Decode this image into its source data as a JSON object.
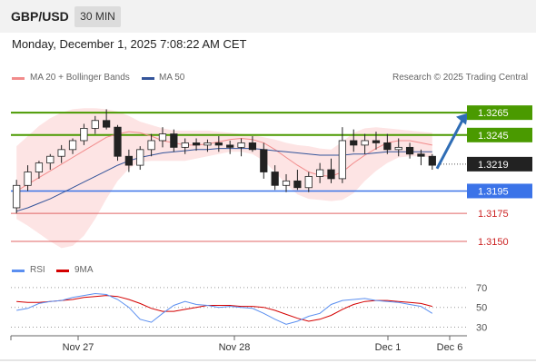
{
  "header": {
    "pair": "GBP/USD",
    "timeframe": "30 MIN",
    "datetime": "Monday, December 1, 2025 7:08:22 AM CET"
  },
  "legend": {
    "ma_bb": "MA 20 + Bollinger Bands",
    "ma50": "MA 50",
    "credit": "Research © 2025 Trading Central",
    "rsi": "RSI",
    "nine_ma": "9MA"
  },
  "colors": {
    "bollinger_fill": "#fde4e4",
    "ma20": "#f28b8b",
    "ma50": "#34549a",
    "bull_candle": "#ffffff",
    "bear_candle": "#222222",
    "resistance": "#4a9a00",
    "pivot": "#3b73e8",
    "support": "#e06666",
    "arrow": "#2f6db5",
    "rsi": "#5b8ff0",
    "rsi_ma": "#d40000"
  },
  "chart_data": [
    {
      "type": "candlestick",
      "title": "GBP/USD 30 MIN",
      "x_tick_labels": [
        "Nov 27",
        "Nov 28",
        "Dec 1",
        "Dec 6"
      ],
      "ylim": [
        1.3137,
        1.3287
      ],
      "current_price": 1.3219,
      "levels": [
        {
          "value": 1.3265,
          "label": "1.3265",
          "kind": "resistance",
          "badge": true
        },
        {
          "value": 1.3245,
          "label": "1.3245",
          "kind": "resistance",
          "badge": true
        },
        {
          "value": 1.3219,
          "label": "1.3219",
          "kind": "current",
          "badge": true
        },
        {
          "value": 1.3195,
          "label": "1.3195",
          "kind": "pivot",
          "badge": true
        },
        {
          "value": 1.3175,
          "label": "1.3175",
          "kind": "support",
          "badge": false
        },
        {
          "value": 1.315,
          "label": "1.3150",
          "kind": "support",
          "badge": false
        }
      ],
      "forecast_arrow": {
        "from": 1.3215,
        "to": 1.3263,
        "direction": "up"
      },
      "series": [
        {
          "name": "MA 20 + Bollinger Bands",
          "ma": [
            1.3195,
            1.3201,
            1.3207,
            1.3213,
            1.3219,
            1.3225,
            1.3231,
            1.3237,
            1.3243,
            1.3246,
            1.3248,
            1.3247,
            1.3244,
            1.324,
            1.3238,
            1.3236,
            1.3236,
            1.3237,
            1.3239,
            1.3241,
            1.3242,
            1.3241,
            1.3238,
            1.3232,
            1.3225,
            1.3218,
            1.3212,
            1.3209,
            1.3208,
            1.3212,
            1.322,
            1.3227,
            1.3233,
            1.3238,
            1.324,
            1.324,
            1.3238,
            1.3236
          ],
          "upper": [
            1.3235,
            1.3244,
            1.3253,
            1.326,
            1.3265,
            1.3268,
            1.3269,
            1.3269,
            1.3268,
            1.3266,
            1.3262,
            1.3257,
            1.3254,
            1.3251,
            1.3249,
            1.3249,
            1.3249,
            1.3249,
            1.3248,
            1.3247,
            1.3246,
            1.3245,
            1.3243,
            1.3241,
            1.3238,
            1.3236,
            1.3235,
            1.3233,
            1.3232,
            1.3239,
            1.3247,
            1.3251,
            1.3252,
            1.3251,
            1.325,
            1.3249,
            1.3248,
            1.3247
          ],
          "lower": [
            1.317,
            1.3164,
            1.3157,
            1.315,
            1.3144,
            1.3146,
            1.3155,
            1.317,
            1.3188,
            1.3204,
            1.3215,
            1.3221,
            1.3222,
            1.3222,
            1.3222,
            1.3222,
            1.3224,
            1.3226,
            1.3228,
            1.323,
            1.323,
            1.3228,
            1.3222,
            1.3212,
            1.3201,
            1.3192,
            1.3188,
            1.3187,
            1.3186,
            1.3187,
            1.3193,
            1.3204,
            1.3213,
            1.322,
            1.3225,
            1.3226,
            1.3226,
            1.3225
          ]
        },
        {
          "name": "MA 50",
          "values": [
            1.3177,
            1.318,
            1.3184,
            1.3188,
            1.3193,
            1.3198,
            1.3203,
            1.3208,
            1.3213,
            1.3218,
            1.3222,
            1.3225,
            1.3227,
            1.3229,
            1.323,
            1.3231,
            1.3232,
            1.3232,
            1.3233,
            1.3233,
            1.3233,
            1.3233,
            1.3232,
            1.3231,
            1.323,
            1.3229,
            1.3228,
            1.3227,
            1.3227,
            1.3227,
            1.3228,
            1.3228,
            1.3229,
            1.323,
            1.323,
            1.323,
            1.323,
            1.323
          ]
        }
      ],
      "candles": [
        [
          1.318,
          1.3205,
          1.3175,
          1.32
        ],
        [
          1.32,
          1.3218,
          1.3195,
          1.3212
        ],
        [
          1.3212,
          1.3222,
          1.3206,
          1.322
        ],
        [
          1.322,
          1.3228,
          1.3214,
          1.3226
        ],
        [
          1.3226,
          1.3236,
          1.322,
          1.3232
        ],
        [
          1.3232,
          1.3242,
          1.3228,
          1.324
        ],
        [
          1.324,
          1.3255,
          1.3236,
          1.3251
        ],
        [
          1.3251,
          1.3262,
          1.3246,
          1.3258
        ],
        [
          1.3258,
          1.3268,
          1.325,
          1.3252
        ],
        [
          1.3252,
          1.3254,
          1.3222,
          1.3226
        ],
        [
          1.3226,
          1.3232,
          1.3212,
          1.3218
        ],
        [
          1.3218,
          1.3235,
          1.3214,
          1.3232
        ],
        [
          1.3232,
          1.3246,
          1.3226,
          1.324
        ],
        [
          1.324,
          1.3252,
          1.3234,
          1.3246
        ],
        [
          1.3246,
          1.325,
          1.323,
          1.3234
        ],
        [
          1.3234,
          1.3242,
          1.3228,
          1.3238
        ],
        [
          1.3238,
          1.3242,
          1.3231,
          1.3236
        ],
        [
          1.3236,
          1.3241,
          1.323,
          1.3238
        ],
        [
          1.3238,
          1.3244,
          1.323,
          1.3236
        ],
        [
          1.3236,
          1.324,
          1.3228,
          1.3234
        ],
        [
          1.3234,
          1.3242,
          1.3226,
          1.3238
        ],
        [
          1.3238,
          1.3244,
          1.323,
          1.3232
        ],
        [
          1.3232,
          1.3238,
          1.3206,
          1.3212
        ],
        [
          1.3212,
          1.3218,
          1.3196,
          1.32
        ],
        [
          1.32,
          1.321,
          1.3194,
          1.3204
        ],
        [
          1.3204,
          1.3214,
          1.3196,
          1.3198
        ],
        [
          1.3198,
          1.3212,
          1.3194,
          1.3208
        ],
        [
          1.3208,
          1.322,
          1.3202,
          1.3214
        ],
        [
          1.3214,
          1.3224,
          1.3202,
          1.3206
        ],
        [
          1.3206,
          1.3252,
          1.3202,
          1.324
        ],
        [
          1.324,
          1.325,
          1.323,
          1.3236
        ],
        [
          1.3236,
          1.3246,
          1.3228,
          1.324
        ],
        [
          1.324,
          1.3248,
          1.3232,
          1.3238
        ],
        [
          1.3238,
          1.3246,
          1.3228,
          1.3232
        ],
        [
          1.3232,
          1.3242,
          1.3226,
          1.3234
        ],
        [
          1.3234,
          1.3238,
          1.3224,
          1.3228
        ],
        [
          1.3228,
          1.3232,
          1.3218,
          1.3226
        ],
        [
          1.3226,
          1.3228,
          1.3214,
          1.3218
        ]
      ]
    },
    {
      "type": "line",
      "title": "RSI",
      "y_tick_labels": [
        "70",
        "50",
        "30"
      ],
      "ylim": [
        25,
        80
      ],
      "series": [
        {
          "name": "RSI",
          "values": [
            47,
            49,
            54,
            56,
            57,
            60,
            62,
            64,
            63,
            58,
            50,
            38,
            35,
            44,
            52,
            56,
            53,
            52,
            50,
            51,
            50,
            49,
            44,
            38,
            33,
            36,
            41,
            44,
            53,
            57,
            58,
            59,
            57,
            56,
            55,
            53,
            51,
            44
          ]
        },
        {
          "name": "9MA",
          "values": [
            56,
            55,
            55,
            56,
            57,
            58,
            60,
            61,
            62,
            61,
            58,
            54,
            49,
            46,
            46,
            48,
            50,
            52,
            52,
            52,
            51,
            51,
            50,
            47,
            43,
            39,
            36,
            38,
            42,
            48,
            53,
            56,
            57,
            57,
            56,
            55,
            54,
            51
          ]
        }
      ]
    }
  ]
}
